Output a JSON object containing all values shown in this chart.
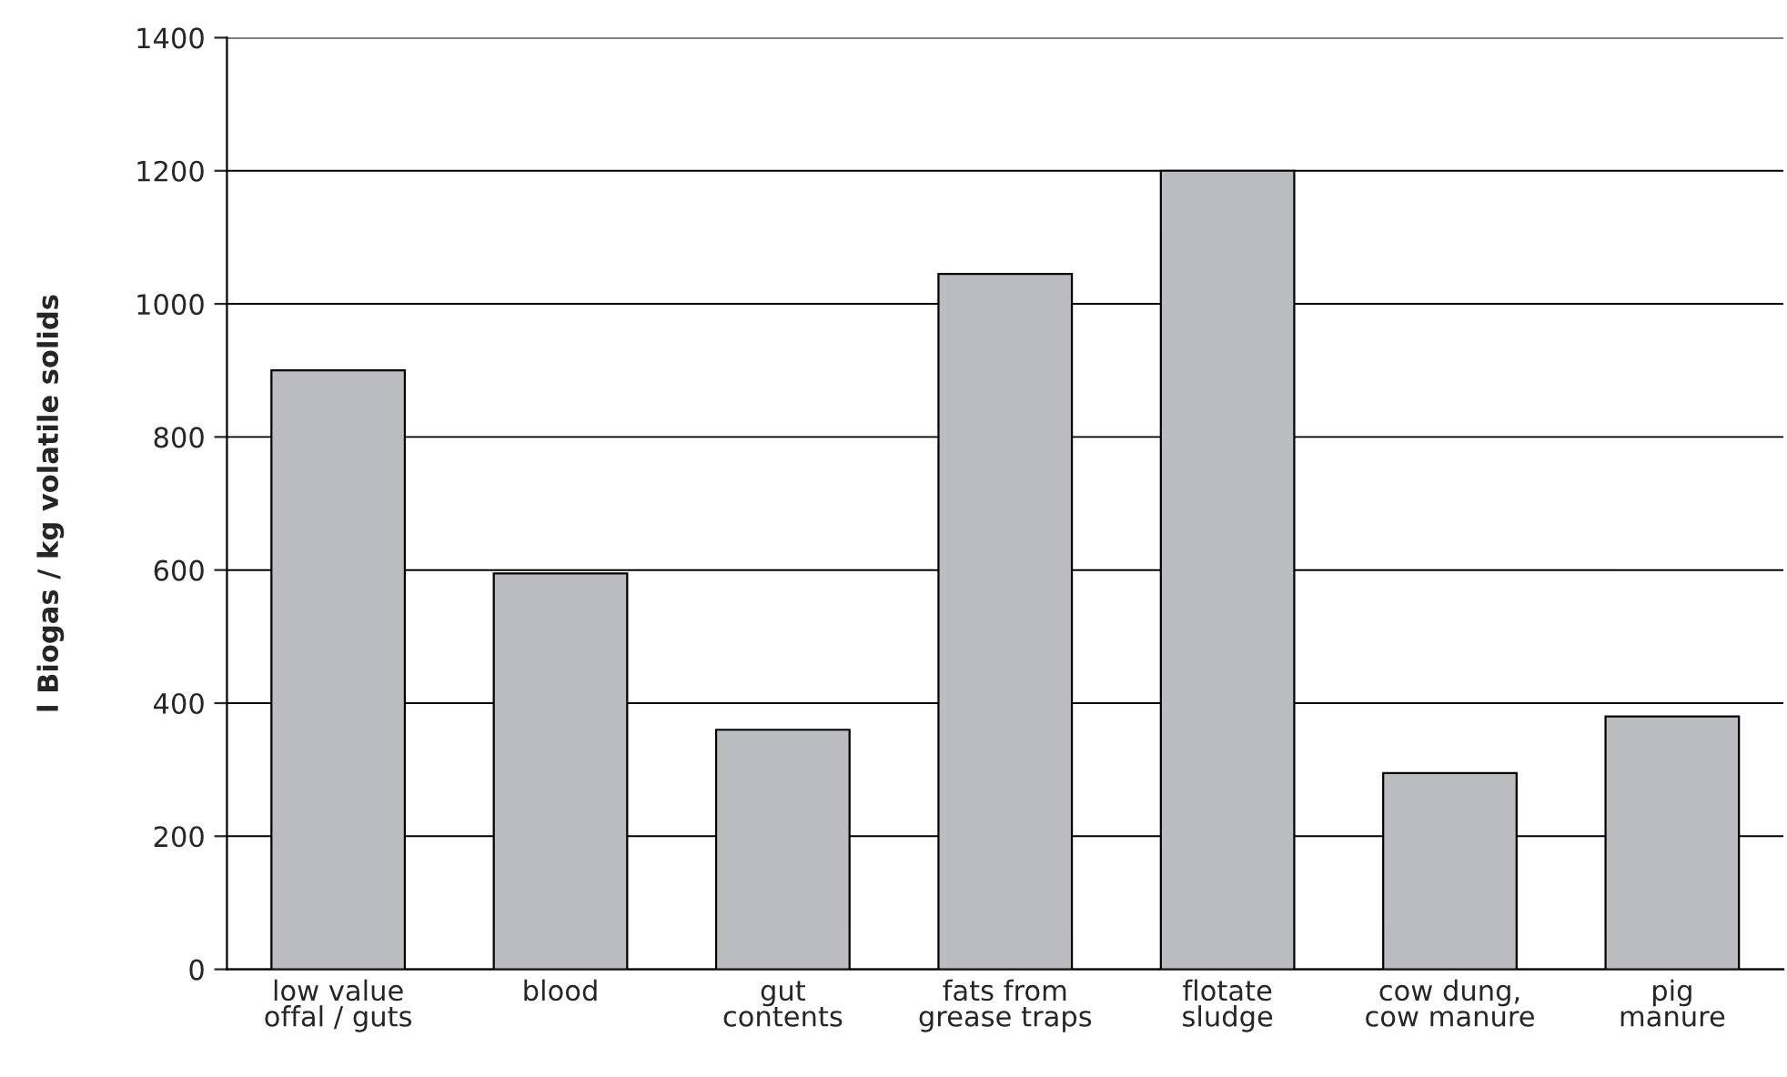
{
  "chart_data": {
    "type": "bar",
    "ylabel": "l Biogas / kg volatile solids",
    "categories": [
      "low value\noffal / guts",
      "blood",
      "gut\ncontents",
      "fats from\ngrease traps",
      "flotate\nsludge",
      "cow dung,\ncow manure",
      "pig\nmanure"
    ],
    "values": [
      900,
      595,
      360,
      1045,
      1200,
      295,
      380
    ],
    "color": "#bbbcc0",
    "ylim": [
      0,
      1400
    ],
    "yticks": [
      0,
      200,
      400,
      600,
      800,
      1000,
      1200,
      1400
    ],
    "grid": "y"
  }
}
